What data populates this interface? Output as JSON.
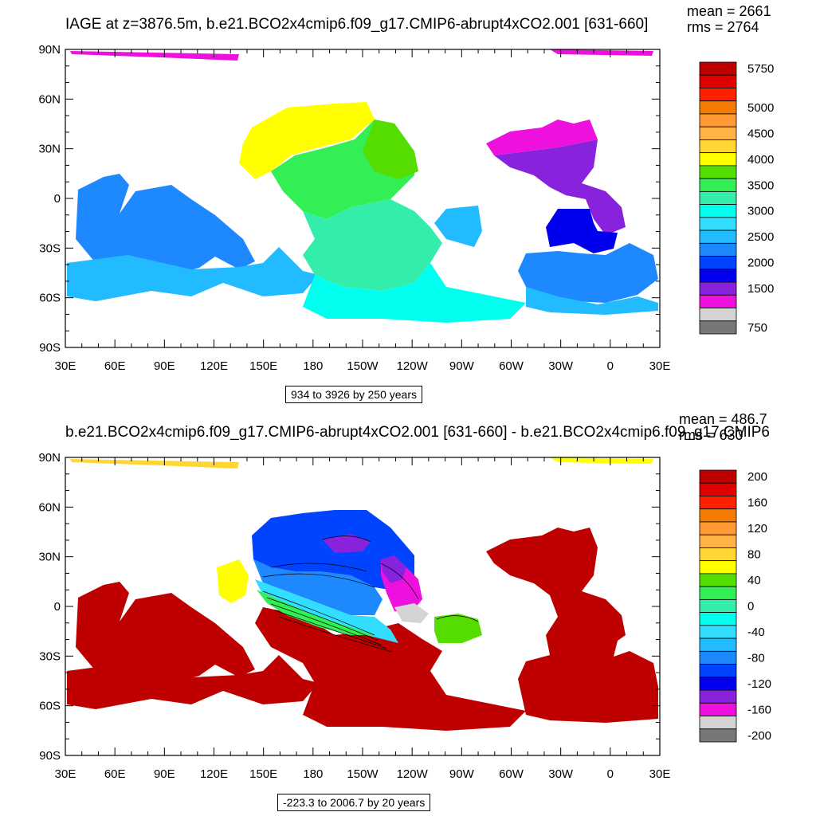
{
  "top": {
    "title": "IAGE at z=3876.5m, b.e21.BCO2x4cmip6.f09_g17.CMIP6-abrupt4xCO2.001 [631-660]",
    "stats": {
      "mean": "mean = 2661",
      "rms": "rms = 2764"
    },
    "info": "934 to 3926 by 250 years",
    "colorbar": {
      "colors": [
        "#bf0000",
        "#e00000",
        "#ff2000",
        "#f47a00",
        "#ff9a33",
        "#ffb347",
        "#ffd633",
        "#ffff00",
        "#55dd00",
        "#33ee55",
        "#33eeaa",
        "#00ffee",
        "#33ddff",
        "#22bbff",
        "#1e88ff",
        "#0044ff",
        "#0000ee",
        "#8822dd",
        "#ee11dd",
        "#d4d4d4",
        "#777777"
      ],
      "labels": [
        {
          "text": "5750",
          "index": 0
        },
        {
          "text": "5000",
          "index": 3
        },
        {
          "text": "4500",
          "index": 5
        },
        {
          "text": "4000",
          "index": 7
        },
        {
          "text": "3500",
          "index": 9
        },
        {
          "text": "3000",
          "index": 11
        },
        {
          "text": "2500",
          "index": 13
        },
        {
          "text": "2000",
          "index": 15
        },
        {
          "text": "1500",
          "index": 17
        },
        {
          "text": "750",
          "index": 20
        }
      ]
    }
  },
  "bottom": {
    "title": "b.e21.BCO2x4cmip6.f09_g17.CMIP6-abrupt4xCO2.001 [631-660] - b.e21.BCO2x4cmip6.f09_g17.CMIP6",
    "stats": {
      "mean": "mean = 486.7",
      "rms": "rms = 630"
    },
    "info": "-223.3 to 2006.7 by 20 years",
    "colorbar": {
      "colors": [
        "#bf0000",
        "#e00000",
        "#ff2000",
        "#f47a00",
        "#ff9a33",
        "#ffb347",
        "#ffd633",
        "#ffff00",
        "#55dd00",
        "#33ee55",
        "#33eeaa",
        "#00ffee",
        "#33ddff",
        "#22bbff",
        "#1e88ff",
        "#0044ff",
        "#0000ee",
        "#8822dd",
        "#ee11dd",
        "#d4d4d4",
        "#777777"
      ],
      "labels": [
        {
          "text": "200",
          "index": 0
        },
        {
          "text": "160",
          "index": 2
        },
        {
          "text": "120",
          "index": 4
        },
        {
          "text": "80",
          "index": 6
        },
        {
          "text": "40",
          "index": 8
        },
        {
          "text": "0",
          "index": 10
        },
        {
          "text": "-40",
          "index": 12
        },
        {
          "text": "-80",
          "index": 14
        },
        {
          "text": "-120",
          "index": 16
        },
        {
          "text": "-160",
          "index": 18
        },
        {
          "text": "-200",
          "index": 20
        }
      ]
    }
  },
  "axes": {
    "lon_labels": [
      "30E",
      "60E",
      "90E",
      "120E",
      "150E",
      "180",
      "150W",
      "120W",
      "90W",
      "60W",
      "30W",
      "0",
      "30E"
    ],
    "lat_labels": [
      "90N",
      "60N",
      "30N",
      "0",
      "30S",
      "60S",
      "90S"
    ]
  }
}
